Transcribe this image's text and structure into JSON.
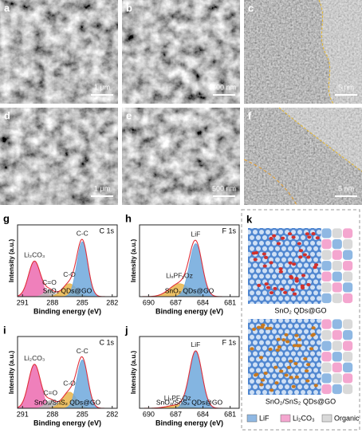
{
  "images": [
    {
      "letter": "a",
      "scale_bar": "1 μm",
      "kind": "sem"
    },
    {
      "letter": "b",
      "scale_bar": "500 nm",
      "kind": "sem"
    },
    {
      "letter": "c",
      "scale_bar": "5 nm",
      "kind": "tem"
    },
    {
      "letter": "d",
      "scale_bar": "1 μm",
      "kind": "sem"
    },
    {
      "letter": "e",
      "scale_bar": "500 nm",
      "kind": "sem"
    },
    {
      "letter": "f",
      "scale_bar": "5 nm",
      "kind": "tem"
    }
  ],
  "chart_data": [
    {
      "type": "area",
      "letter": "g",
      "core": "C 1s",
      "sample": "SnO₂ QDs@GO",
      "xlabel": "Binding energy (eV)",
      "ylabel": "Intensity (a.u.)",
      "xlim": [
        291.5,
        281.5
      ],
      "xticks": [
        291,
        288,
        285,
        282
      ],
      "peaks": [
        {
          "name": "Li₂CO₃",
          "center": 289.8,
          "height": 0.55,
          "width": 0.6,
          "color": "#ec6aaf"
        },
        {
          "name": "C=O",
          "center": 288.3,
          "height": 0.1,
          "width": 0.5,
          "color": "#b9b9b9"
        },
        {
          "name": "C-O",
          "center": 286.3,
          "height": 0.2,
          "width": 0.7,
          "color": "#e9b54a"
        },
        {
          "name": "C-C",
          "center": 285.0,
          "height": 0.85,
          "width": 0.55,
          "color": "#6fa8dc"
        }
      ]
    },
    {
      "type": "area",
      "letter": "h",
      "core": "F 1s",
      "sample": "SnO₂ QDs@GO",
      "xlabel": "Binding energy (eV)",
      "ylabel": "Intensity (a.u.)",
      "xlim": [
        691,
        680
      ],
      "xticks": [
        690,
        687,
        684,
        681
      ],
      "peaks": [
        {
          "name": "LiₓPFᵧOz",
          "center": 686.6,
          "height": 0.2,
          "width": 1.1,
          "color": "#e9b54a"
        },
        {
          "name": "LiF",
          "center": 684.8,
          "height": 0.82,
          "width": 0.7,
          "color": "#6fa8dc"
        }
      ]
    },
    {
      "type": "area",
      "letter": "i",
      "core": "C 1s",
      "sample": "SnO₂/SnS₂ QDs@GO",
      "xlabel": "Binding energy (eV)",
      "ylabel": "Intensity (a.u.)",
      "xlim": [
        291.5,
        281.5
      ],
      "xticks": [
        291,
        288,
        285,
        282
      ],
      "peaks": [
        {
          "name": "Li₂CO₃",
          "center": 289.8,
          "height": 0.68,
          "width": 0.6,
          "color": "#ec6aaf"
        },
        {
          "name": "C=O",
          "center": 288.2,
          "height": 0.12,
          "width": 0.5,
          "color": "#b9b9b9"
        },
        {
          "name": "C-O",
          "center": 286.3,
          "height": 0.25,
          "width": 0.7,
          "color": "#e9b54a"
        },
        {
          "name": "C-C",
          "center": 285.0,
          "height": 0.75,
          "width": 0.55,
          "color": "#6fa8dc"
        }
      ]
    },
    {
      "type": "area",
      "letter": "j",
      "core": "F 1s",
      "sample": "SnO₂/SnS₂ QDs@GO",
      "xlabel": "Binding energy (eV)",
      "ylabel": "Intensity (a.u.)",
      "xlim": [
        691,
        680
      ],
      "xticks": [
        690,
        687,
        684,
        681
      ],
      "peaks": [
        {
          "name": "LiₓPFᵧOz",
          "center": 686.8,
          "height": 0.05,
          "width": 1.1,
          "color": "#e9b54a"
        },
        {
          "name": "LiF",
          "center": 684.8,
          "height": 0.88,
          "width": 0.7,
          "color": "#6fa8dc"
        }
      ]
    }
  ],
  "schematic": {
    "letter": "k",
    "panels": [
      {
        "caption": "SnO₂ QDs@GO",
        "dot_color": "#d2302c"
      },
      {
        "caption": "SnO₂/SnS₂ QDs@GO",
        "dot_color": "#c8781e"
      }
    ],
    "legend": [
      {
        "label": "LiF",
        "color": "#8fb8e3"
      },
      {
        "label": "Li₂CO₃",
        "color": "#f4a6cf"
      },
      {
        "label": "Organic",
        "color": "#d9d9d9"
      }
    ]
  }
}
